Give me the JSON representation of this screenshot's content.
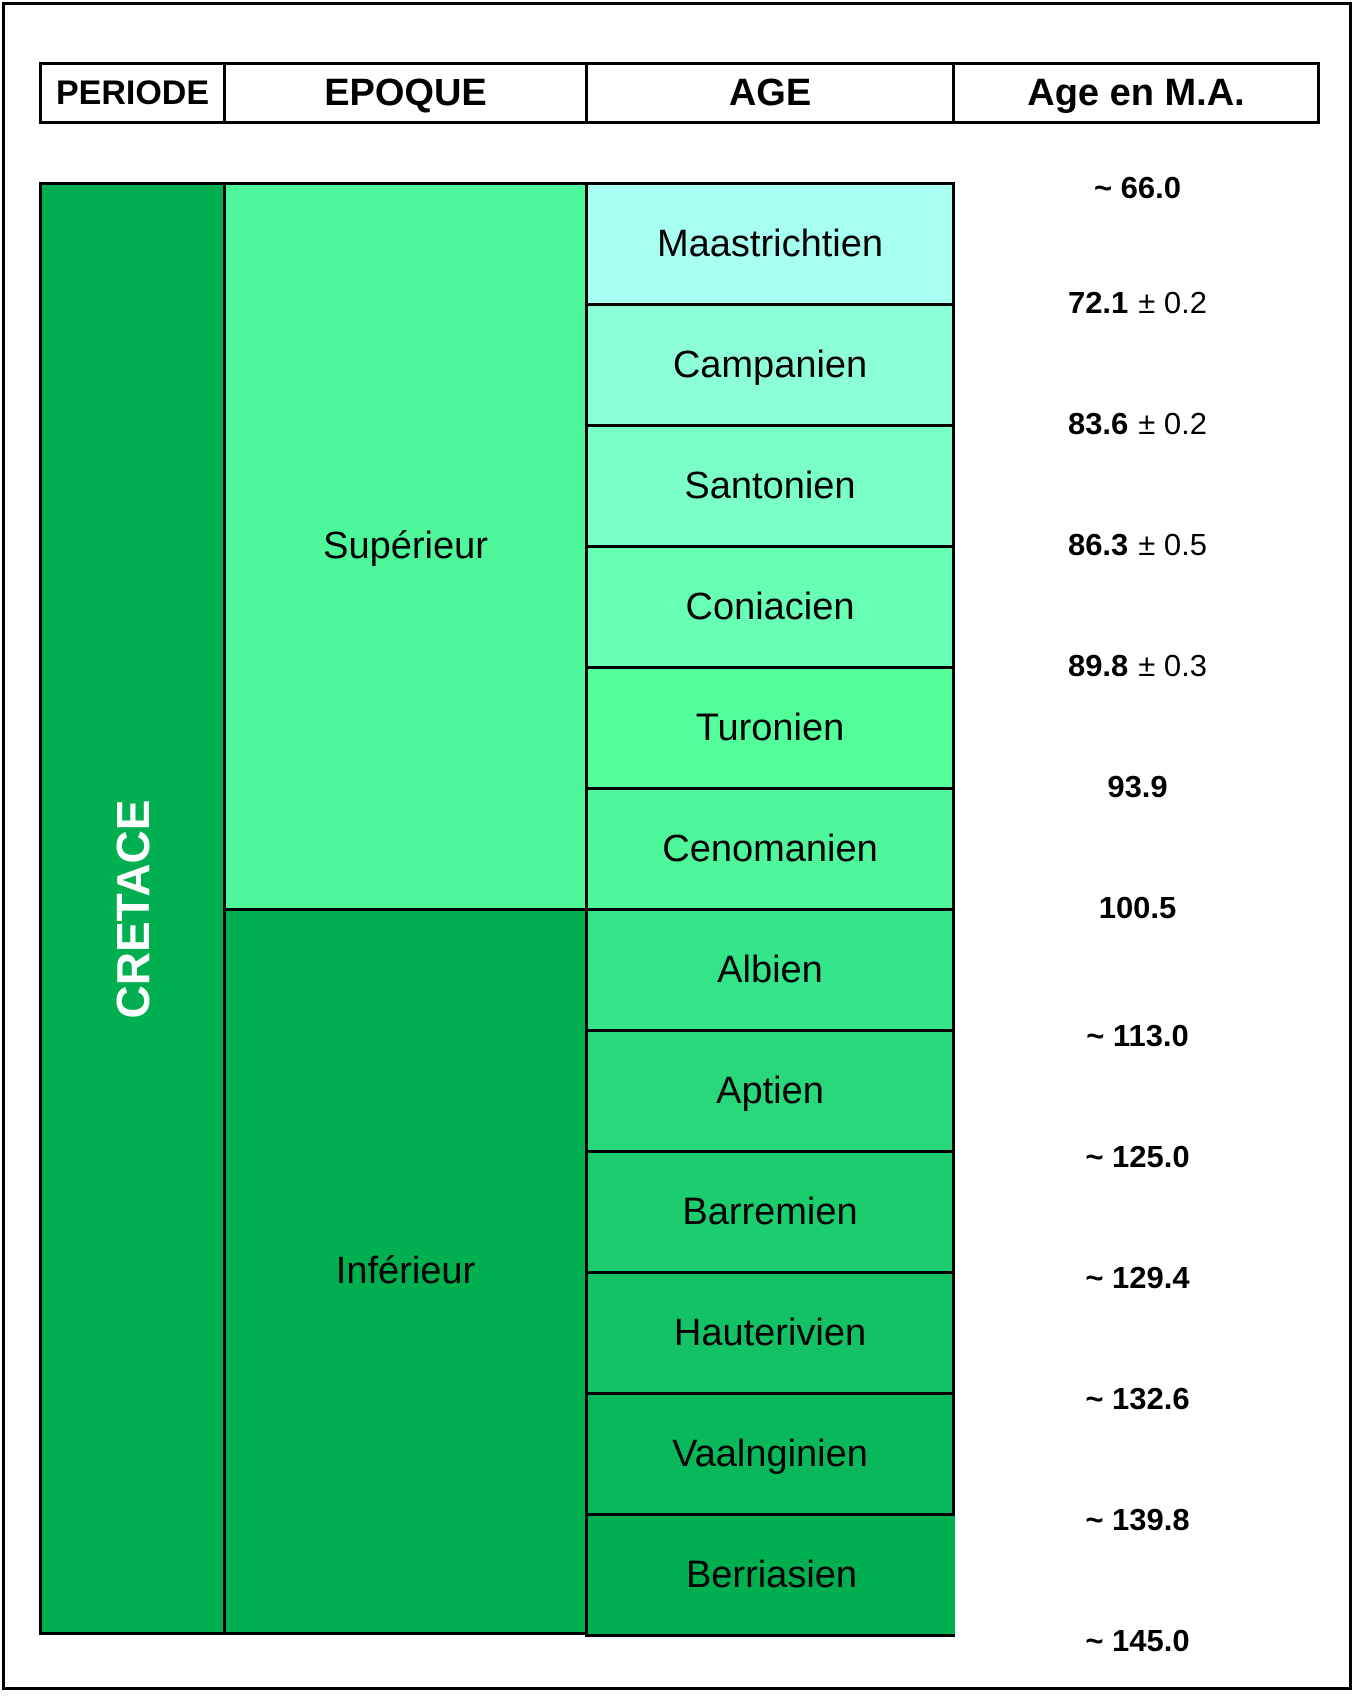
{
  "headers": {
    "periode": "PERIODE",
    "epoque": "EPOQUE",
    "age": "AGE",
    "age_ma": "Age en M.A."
  },
  "periode": {
    "label": "CRETACE",
    "color": "#00af50"
  },
  "epoques": [
    {
      "label": "Supérieur",
      "color": "#4df79a"
    },
    {
      "label": "Inférieur",
      "color": "#00af50"
    }
  ],
  "ages": [
    {
      "label": "Maastrichtien",
      "color": "#a6fff0"
    },
    {
      "label": "Campanien",
      "color": "#8cffd9"
    },
    {
      "label": "Santonien",
      "color": "#7affc7"
    },
    {
      "label": "Coniacien",
      "color": "#66ffb3"
    },
    {
      "label": "Turonien",
      "color": "#52ff9a"
    },
    {
      "label": "Cenomanien",
      "color": "#4df79a"
    },
    {
      "label": "Albien",
      "color": "#33e588"
    },
    {
      "label": "Aptien",
      "color": "#28d87a"
    },
    {
      "label": "Barremien",
      "color": "#1ccd6e"
    },
    {
      "label": "Hauterivien",
      "color": "#12c264"
    },
    {
      "label": "Vaalnginien",
      "color": "#08b85a"
    },
    {
      "label": "Berriasien",
      "color": "#00af50"
    }
  ],
  "boundaries": [
    {
      "value": "~ 66.0",
      "uncertainty": ""
    },
    {
      "value": "72.1",
      "uncertainty": "± 0.2"
    },
    {
      "value": "83.6",
      "uncertainty": "± 0.2"
    },
    {
      "value": "86.3",
      "uncertainty": "± 0.5"
    },
    {
      "value": "89.8",
      "uncertainty": "± 0.3"
    },
    {
      "value": "93.9",
      "uncertainty": ""
    },
    {
      "value": "100.5",
      "uncertainty": ""
    },
    {
      "value": "~ 113.0",
      "uncertainty": ""
    },
    {
      "value": "~ 125.0",
      "uncertainty": ""
    },
    {
      "value": "~ 129.4",
      "uncertainty": ""
    },
    {
      "value": "~ 132.6",
      "uncertainty": ""
    },
    {
      "value": "~ 139.8",
      "uncertainty": ""
    },
    {
      "value": "~ 145.0",
      "uncertainty": ""
    }
  ]
}
